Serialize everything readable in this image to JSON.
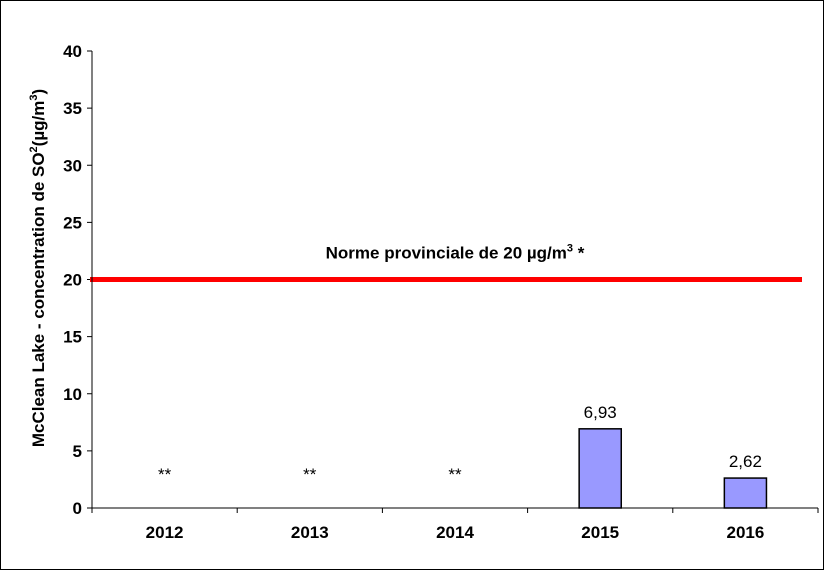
{
  "chart_data": {
    "type": "bar",
    "title": "",
    "xlabel": "",
    "ylabel": {
      "main": "McClean Lake - concentration de SO",
      "sup1": "2",
      "unit": "(µg/m",
      "sup2": "3",
      "close": ")"
    },
    "ylim": [
      0,
      40
    ],
    "yticks": [
      0,
      5,
      10,
      15,
      20,
      25,
      30,
      35,
      40
    ],
    "categories": [
      "2012",
      "2013",
      "2014",
      "2015",
      "2016"
    ],
    "values": [
      null,
      null,
      null,
      6.93,
      2.62
    ],
    "data_labels": [
      "**",
      "**",
      "**",
      "6,93",
      "2,62"
    ],
    "bar_color": "#9999ff",
    "grid": false,
    "legend": "none",
    "reference_line": {
      "value": 20,
      "color": "#ff0000",
      "label_main": "Norme provinciale de 20 µg/m",
      "label_sup": "3",
      "label_tail": " *"
    }
  }
}
